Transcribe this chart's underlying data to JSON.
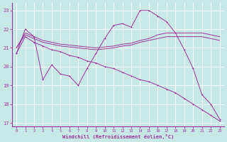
{
  "background_color": "#c8e8e8",
  "grid_color": "#ffffff",
  "line_color": "#993399",
  "xlabel": "Windchill (Refroidissement éolien,°C)",
  "ylim": [
    16.8,
    23.4
  ],
  "xlim": [
    -0.5,
    23.5
  ],
  "yticks": [
    17,
    18,
    19,
    20,
    21,
    22,
    23
  ],
  "xticks": [
    0,
    1,
    2,
    3,
    4,
    5,
    6,
    7,
    8,
    9,
    10,
    11,
    12,
    13,
    14,
    15,
    16,
    17,
    18,
    19,
    20,
    21,
    22,
    23
  ],
  "series1_x": [
    0,
    1,
    2,
    3,
    4,
    5,
    6,
    7,
    8,
    9,
    10,
    11,
    12,
    13,
    14,
    15,
    16,
    17,
    18,
    19,
    20,
    21,
    22,
    23
  ],
  "series1_y": [
    20.7,
    22.0,
    21.6,
    19.3,
    20.1,
    19.6,
    19.5,
    19.0,
    19.9,
    20.7,
    21.5,
    22.2,
    22.3,
    22.1,
    23.0,
    23.0,
    22.7,
    22.4,
    21.8,
    20.9,
    19.9,
    18.5,
    18.0,
    17.2
  ],
  "series2_x": [
    0,
    1,
    2,
    3,
    4,
    5,
    6,
    7,
    8,
    9,
    10,
    11,
    12,
    13,
    14,
    15,
    16,
    17,
    18,
    19,
    20,
    21,
    22,
    23
  ],
  "series2_y": [
    21.0,
    21.8,
    21.6,
    21.4,
    21.3,
    21.2,
    21.15,
    21.1,
    21.05,
    21.0,
    21.05,
    21.1,
    21.2,
    21.25,
    21.4,
    21.5,
    21.7,
    21.8,
    21.8,
    21.8,
    21.8,
    21.8,
    21.7,
    21.6
  ],
  "series3_x": [
    0,
    1,
    2,
    3,
    4,
    5,
    6,
    7,
    8,
    9,
    10,
    11,
    12,
    13,
    14,
    15,
    16,
    17,
    18,
    19,
    20,
    21,
    22,
    23
  ],
  "series3_y": [
    21.0,
    21.7,
    21.5,
    21.3,
    21.2,
    21.1,
    21.05,
    21.0,
    20.95,
    20.9,
    20.95,
    21.0,
    21.1,
    21.15,
    21.3,
    21.4,
    21.5,
    21.6,
    21.6,
    21.6,
    21.6,
    21.6,
    21.5,
    21.4
  ],
  "series4_x": [
    0,
    1,
    2,
    3,
    4,
    5,
    6,
    7,
    8,
    9,
    10,
    11,
    12,
    13,
    14,
    15,
    16,
    17,
    18,
    19,
    20,
    21,
    22,
    23
  ],
  "series4_y": [
    20.7,
    21.6,
    21.3,
    21.1,
    20.9,
    20.8,
    20.6,
    20.5,
    20.3,
    20.2,
    20.0,
    19.9,
    19.7,
    19.5,
    19.3,
    19.2,
    19.0,
    18.8,
    18.6,
    18.3,
    18.0,
    17.7,
    17.4,
    17.1
  ]
}
